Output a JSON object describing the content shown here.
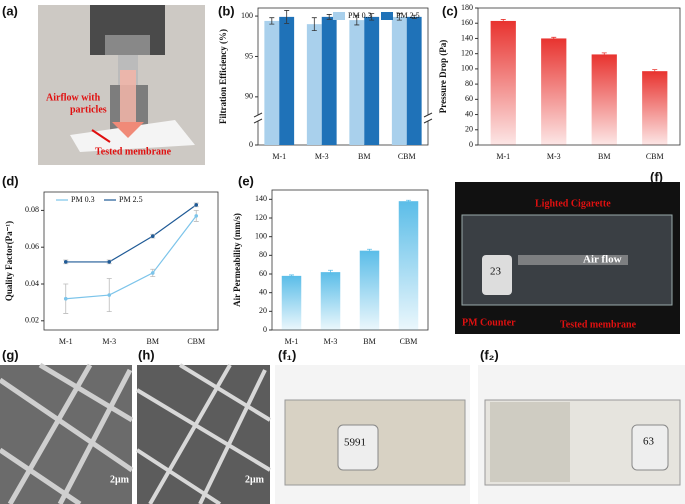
{
  "chart_data": [
    {
      "type": "bar",
      "ylabel": "Filtration Efficiency (%)",
      "categories": [
        "M-1",
        "M-3",
        "BM",
        "CBM"
      ],
      "series": [
        {
          "name": "PM 0.3",
          "color": "#a9d0ec",
          "values": [
            99.4,
            99.0,
            99.5,
            99.9
          ],
          "errors": [
            0.4,
            0.8,
            0.6,
            0.4
          ]
        },
        {
          "name": "PM 2.5",
          "color": "#1f72b8",
          "values": [
            99.9,
            99.9,
            99.9,
            99.9
          ],
          "errors": [
            0.8,
            0.3,
            0.4,
            0.2
          ]
        }
      ],
      "ylim": [
        0,
        101
      ],
      "ybreak": [
        1,
        88
      ],
      "yticks": [
        0,
        90,
        95,
        100
      ],
      "legend": "top-right"
    },
    {
      "type": "bar",
      "ylabel": "Pressure Drop (Pa)",
      "categories": [
        "M-1",
        "M-3",
        "BM",
        "CBM"
      ],
      "values": [
        163,
        140,
        119,
        97
      ],
      "errors": [
        2,
        1.5,
        2,
        2
      ],
      "color": "#e8332f",
      "gradient": true,
      "ylim": [
        0,
        180
      ],
      "yticks": [
        0,
        20,
        40,
        60,
        80,
        100,
        120,
        140,
        160,
        180
      ]
    },
    {
      "type": "line",
      "ylabel": "Quality Factor(Pa⁻¹)",
      "categories": [
        "M-1",
        "M-3",
        "BM",
        "CBM"
      ],
      "series": [
        {
          "name": "PM 0.3",
          "color": "#7cc4ea",
          "values": [
            0.032,
            0.034,
            0.046,
            0.077
          ],
          "errors": [
            0.008,
            0.009,
            0.002,
            0.003
          ]
        },
        {
          "name": "PM 2.5",
          "color": "#1f5a96",
          "values": [
            0.052,
            0.052,
            0.066,
            0.083
          ],
          "errors": [
            0.001,
            0.001,
            0.001,
            0.001
          ]
        }
      ],
      "ylim": [
        0.015,
        0.09
      ],
      "yticks": [
        0.02,
        0.04,
        0.06,
        0.08
      ],
      "legend": "top-left"
    },
    {
      "type": "bar",
      "ylabel": "Air Permeability (mm/s)",
      "categories": [
        "M-1",
        "M-3",
        "BM",
        "CBM"
      ],
      "values": [
        58,
        62,
        85,
        138
      ],
      "errors": [
        1,
        2,
        1.5,
        1
      ],
      "color": "#5bbde8",
      "gradient": true,
      "ylim": [
        0,
        150
      ],
      "yticks": [
        0,
        20,
        40,
        60,
        80,
        100,
        120,
        140
      ]
    }
  ],
  "panel_labels": [
    "(a)",
    "(b)",
    "(c)",
    "(d)",
    "(e)",
    "(f)",
    "(g)",
    "(h)",
    "(f₁)",
    "(f₂)"
  ],
  "photo_a": {
    "airflow": [
      "Airflow with",
      "particles"
    ],
    "membrane": "Tested membrane"
  },
  "photo_f": {
    "cigarette": "Lighted Cigarette",
    "airflow": "Air flow",
    "counter": "PM Counter",
    "membrane": "Tested membrane",
    "reading": "23"
  },
  "scale_bars": [
    "2μm",
    "2μm"
  ],
  "readings": [
    "5991",
    "63"
  ]
}
